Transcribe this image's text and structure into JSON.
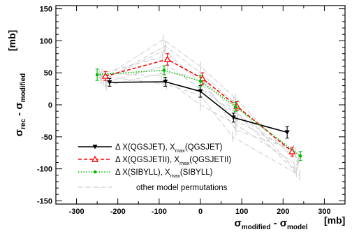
{
  "chart_data": {
    "type": "line",
    "title": "",
    "xlabel": "σ_modified - σ_model",
    "xlabel_unit": "[mb]",
    "ylabel": "σ_rec - σ_modified",
    "ylabel_unit": "[mb]",
    "xlim": [
      -350,
      350
    ],
    "ylim": [
      -155,
      155
    ],
    "x_ticks": [
      -300,
      -200,
      -100,
      0,
      100,
      200,
      300
    ],
    "y_ticks": [
      -150,
      -100,
      -50,
      0,
      50,
      100,
      150
    ],
    "grid": false,
    "legend_position": "bottom-left",
    "series": [
      {
        "name": "Δ X(QGSJET), X_max(QGSJET)",
        "name_main": "Δ X(QGSJET), X",
        "name_sub": "max",
        "name_tail": "(QGSJET)",
        "color": "#000000",
        "dash": "solid",
        "marker": "triangle-down",
        "x": [
          -220,
          -85,
          0,
          80,
          210
        ],
        "y": [
          35,
          36,
          21,
          -20,
          -43
        ],
        "err": [
          6,
          7,
          9,
          7,
          9
        ]
      },
      {
        "name": "Δ X(QGSJETII), X_max(QGSJETII)",
        "name_main": "Δ X(QGSJETII), X",
        "name_sub": "max",
        "name_tail": "(QGSJETII)",
        "color": "#ff0000",
        "dash": "dashed",
        "marker": "triangle-up-open",
        "x": [
          -230,
          -80,
          5,
          88,
          222
        ],
        "y": [
          45,
          71,
          41,
          -2,
          -73
        ],
        "err": [
          7,
          9,
          9,
          7,
          7
        ]
      },
      {
        "name": "Δ X(SIBYLL), X_max(SIBYLL)",
        "name_main": "Δ X(SIBYLL), X",
        "name_sub": "max",
        "name_tail": "(SIBYLL)",
        "color": "#00bb00",
        "dash": "dotted",
        "marker": "circle",
        "x": [
          -250,
          -88,
          0,
          85,
          242
        ],
        "y": [
          47,
          54,
          37,
          -3,
          -80
        ],
        "err": [
          9,
          7,
          9,
          7,
          7
        ]
      }
    ],
    "background_series": {
      "name": "other model permutations",
      "color": "#c8c8c8",
      "lines": [
        {
          "x": [
            -240,
            -90,
            0,
            85,
            235
          ],
          "y": [
            40,
            102,
            60,
            10,
            -90
          ]
        },
        {
          "x": [
            -235,
            -85,
            0,
            80,
            228
          ],
          "y": [
            38,
            92,
            50,
            5,
            -100
          ]
        },
        {
          "x": [
            -225,
            -88,
            0,
            88,
            230
          ],
          "y": [
            42,
            85,
            35,
            -25,
            -75
          ]
        },
        {
          "x": [
            -245,
            -92,
            5,
            82,
            238
          ],
          "y": [
            48,
            75,
            40,
            -10,
            -85
          ]
        },
        {
          "x": [
            -230,
            -80,
            0,
            90,
            232
          ],
          "y": [
            35,
            62,
            25,
            -15,
            -105
          ]
        },
        {
          "x": [
            -238,
            -95,
            0,
            84,
            236
          ],
          "y": [
            50,
            45,
            0,
            -30,
            -95
          ]
        },
        {
          "x": [
            -228,
            -86,
            0,
            86,
            226
          ],
          "y": [
            30,
            50,
            45,
            -40,
            -70
          ]
        },
        {
          "x": [
            -242,
            -82,
            0,
            78,
            240
          ],
          "y": [
            45,
            32,
            15,
            -50,
            -110
          ]
        }
      ]
    }
  }
}
